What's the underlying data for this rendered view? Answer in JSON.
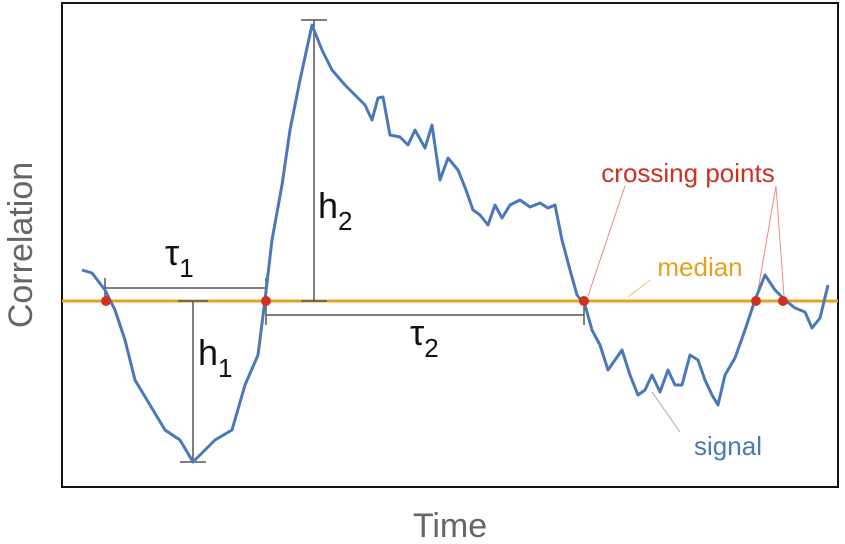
{
  "axes": {
    "y_label": "Correlation",
    "x_label": "Time"
  },
  "annotations": {
    "crossing_points": "crossing points",
    "median": "median",
    "signal": "signal",
    "tau1": {
      "symbol": "τ",
      "subscript": "1"
    },
    "tau2": {
      "symbol": "τ",
      "subscript": "2"
    },
    "h1": {
      "symbol": "h",
      "subscript": "1"
    },
    "h2": {
      "symbol": "h",
      "subscript": "2"
    }
  }
}
